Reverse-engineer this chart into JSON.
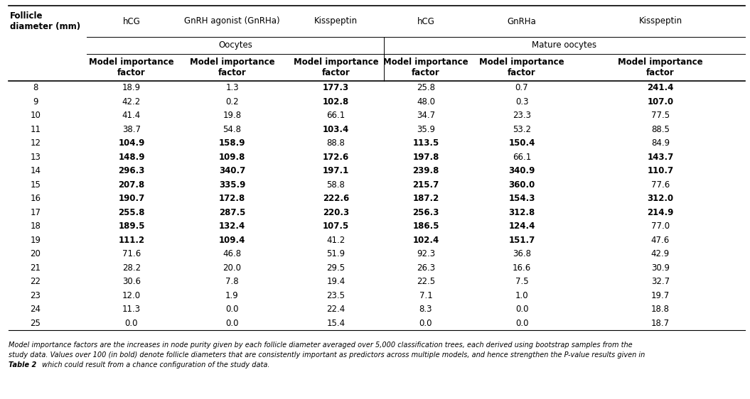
{
  "col0_header": "Follicle\ndiameter (mm)",
  "group1_header": "Oocytes",
  "group2_header": "Mature oocytes",
  "col_headers_top": [
    "hCG",
    "GnRH agonist (GnRHa)",
    "Kisspeptin",
    "hCG",
    "GnRHa",
    "Kisspeptin"
  ],
  "col_headers_sub": [
    "Model importance\nfactor",
    "Model importance\nfactor",
    "Model importance\nfactor",
    "Model importance\nfactor",
    "Model importance\nfactor",
    "Model importance\nfactor"
  ],
  "rows": [
    [
      8,
      18.9,
      1.3,
      177.3,
      25.8,
      0.7,
      241.4
    ],
    [
      9,
      42.2,
      0.2,
      102.8,
      48.0,
      0.3,
      107.0
    ],
    [
      10,
      41.4,
      19.8,
      66.1,
      34.7,
      23.3,
      77.5
    ],
    [
      11,
      38.7,
      54.8,
      103.4,
      35.9,
      53.2,
      88.5
    ],
    [
      12,
      104.9,
      158.9,
      88.8,
      113.5,
      150.4,
      84.9
    ],
    [
      13,
      148.9,
      109.8,
      172.6,
      197.8,
      66.1,
      143.7
    ],
    [
      14,
      296.3,
      340.7,
      197.1,
      239.8,
      340.9,
      110.7
    ],
    [
      15,
      207.8,
      335.9,
      58.8,
      215.7,
      360.0,
      77.6
    ],
    [
      16,
      190.7,
      172.8,
      222.6,
      187.2,
      154.3,
      312.0
    ],
    [
      17,
      255.8,
      287.5,
      220.3,
      256.3,
      312.8,
      214.9
    ],
    [
      18,
      189.5,
      132.4,
      107.5,
      186.5,
      124.4,
      77.0
    ],
    [
      19,
      111.2,
      109.4,
      41.2,
      102.4,
      151.7,
      47.6
    ],
    [
      20,
      71.6,
      46.8,
      51.9,
      92.3,
      36.8,
      42.9
    ],
    [
      21,
      28.2,
      20.0,
      29.5,
      26.3,
      16.6,
      30.9
    ],
    [
      22,
      30.6,
      7.8,
      19.4,
      22.5,
      7.5,
      32.7
    ],
    [
      23,
      12.0,
      1.9,
      23.5,
      7.1,
      1.0,
      19.7
    ],
    [
      24,
      11.3,
      0.0,
      22.4,
      8.3,
      0.0,
      18.8
    ],
    [
      25,
      0.0,
      0.0,
      15.4,
      0.0,
      0.0,
      18.7
    ]
  ],
  "footnote_line1": "Model importance factors are the increases in node purity given by each follicle diameter averaged over 5,000 classification trees, each derived using bootstrap samples from the",
  "footnote_line2": "study data. Values over 100 (in bold) denote follicle diameters that are consistently important as predictors across multiple models, and hence strengthen the P-value results given in",
  "footnote_line3_bold": "Table 2",
  "footnote_line3_rest": " which could result from a chance configuration of the study data.",
  "bold_threshold": 100.0,
  "fontsize_header": 8.5,
  "fontsize_data": 8.5,
  "fontsize_footnote": 7.0
}
